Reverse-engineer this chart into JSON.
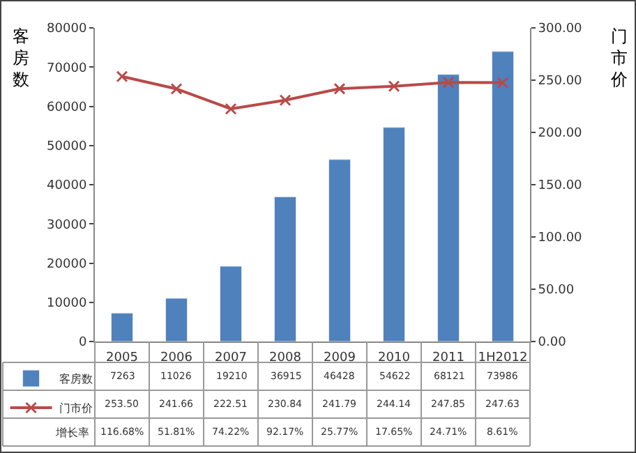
{
  "chart_data": {
    "type": "bar",
    "categories": [
      "2005",
      "2006",
      "2007",
      "2008",
      "2009",
      "2010",
      "2011",
      "1H2012"
    ],
    "ylabel": "客房数",
    "y2label": "门市价",
    "series": [
      {
        "name": "客房数",
        "color": "#4f81bd",
        "values": [
          7263,
          11026,
          19210,
          36915,
          46428,
          54622,
          68121,
          73986
        ],
        "value_labels": [
          "7263",
          "11026",
          "19210",
          "36915",
          "46428",
          "54622",
          "68121",
          "73986"
        ]
      },
      {
        "name": "门市价",
        "type": "line",
        "axis": "y2",
        "color": "#b94a48",
        "marker": "cross",
        "values": [
          253.5,
          241.66,
          222.51,
          230.84,
          241.79,
          244.14,
          247.85,
          247.63
        ],
        "value_labels": [
          "253.50",
          "241.66",
          "222.51",
          "230.84",
          "241.79",
          "244.14",
          "247.85",
          "247.63"
        ]
      }
    ],
    "ylim": [
      0,
      80000
    ],
    "yticks": [
      0,
      10000,
      20000,
      30000,
      40000,
      50000,
      60000,
      70000,
      80000
    ],
    "y2lim": [
      0,
      300
    ],
    "y2ticks": [
      {
        "value": 0,
        "label": "0.00"
      },
      {
        "value": 50,
        "label": "50.00"
      },
      {
        "value": 100,
        "label": "100.00"
      },
      {
        "value": 150,
        "label": "150.00"
      },
      {
        "value": 200,
        "label": "200.00"
      },
      {
        "value": 250,
        "label": "250.00"
      },
      {
        "value": 300,
        "label": "300.00"
      }
    ],
    "annotations": [
      "增长率",
      "116.68%",
      "51.81%",
      "74.22%",
      "92.17%",
      "25.77%",
      "17.65%",
      "24.71%",
      "8.61%"
    ],
    "legend": "bottom"
  }
}
